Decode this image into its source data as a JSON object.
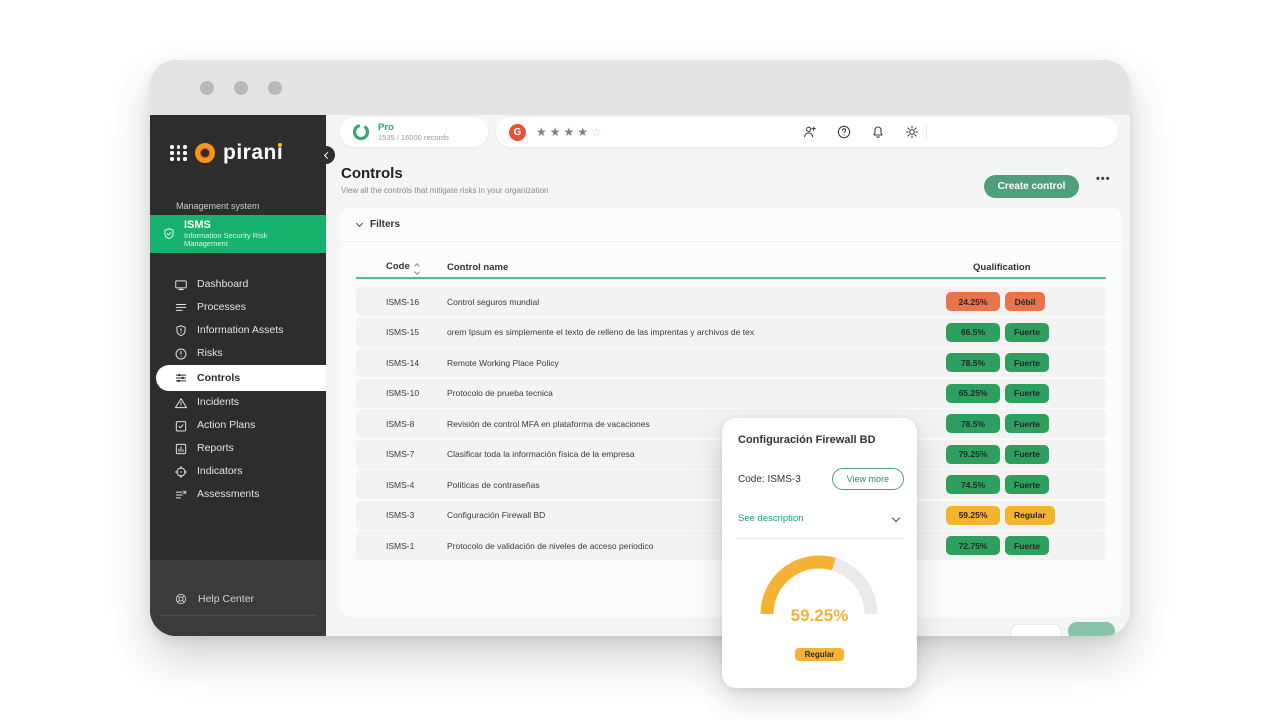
{
  "topbar": {
    "plan": {
      "name": "Pro",
      "records": "1535 / 16000 records"
    },
    "rating": {
      "provider": "G",
      "filled": 4,
      "total": 5
    },
    "icons": [
      "add-user",
      "help",
      "notifications",
      "settings"
    ]
  },
  "sidebar": {
    "brand": "pirani",
    "section_label": "Management system",
    "module": {
      "name": "ISMS",
      "description": "Information Security Risk Management"
    },
    "items": [
      {
        "icon": "dashboard",
        "label": "Dashboard",
        "active": false
      },
      {
        "icon": "processes",
        "label": "Processes",
        "active": false
      },
      {
        "icon": "information-assets",
        "label": "Information Assets",
        "active": false
      },
      {
        "icon": "risks",
        "label": "Risks",
        "active": false
      },
      {
        "icon": "controls",
        "label": "Controls",
        "active": true
      },
      {
        "icon": "incidents",
        "label": "Incidents",
        "active": false
      },
      {
        "icon": "action-plans",
        "label": "Action Plans",
        "active": false
      },
      {
        "icon": "reports",
        "label": "Reports",
        "active": false
      },
      {
        "icon": "indicators",
        "label": "Indicators",
        "active": false
      },
      {
        "icon": "assessments",
        "label": "Assessments",
        "active": false
      }
    ],
    "help_label": "Help Center"
  },
  "page": {
    "title": "Controls",
    "subtitle": "View all the controls that mitigate risks in your organization",
    "create_button": "Create control",
    "more_button": "•••",
    "filters_label": "Filters"
  },
  "table": {
    "columns": {
      "code": "Code",
      "name": "Control name",
      "qualification": "Qualification"
    },
    "rows": [
      {
        "code": "ISMS-16",
        "name": "Control seguros mundial",
        "percent": "24.25%",
        "level": "Débil",
        "color": "#E8744B"
      },
      {
        "code": "ISMS-15",
        "name": "orem Ipsum es simplemente el texto de relleno de las imprentas y archivos de tex",
        "percent": "66.5%",
        "level": "Fuerte",
        "color": "#2DA05D"
      },
      {
        "code": "ISMS-14",
        "name": "Remote Working Place Policy",
        "percent": "78.5%",
        "level": "Fuerte",
        "color": "#2DA05D"
      },
      {
        "code": "ISMS-10",
        "name": "Protocolo de prueba tecnica",
        "percent": "65.25%",
        "level": "Fuerte",
        "color": "#2DA05D"
      },
      {
        "code": "ISMS-8",
        "name": "Revisión de control MFA en plataforma de vacaciones",
        "percent": "78.5%",
        "level": "Fuerte",
        "color": "#2DA05D"
      },
      {
        "code": "ISMS-7",
        "name": "Clasificar toda la información física de la empresa",
        "percent": "79.25%",
        "level": "Fuerte",
        "color": "#2DA05D"
      },
      {
        "code": "ISMS-4",
        "name": "Políticas de contraseñas",
        "percent": "74.5%",
        "level": "Fuerte",
        "color": "#2DA05D"
      },
      {
        "code": "ISMS-3",
        "name": "Configuración Firewall BD",
        "percent": "59.25%",
        "level": "Regular",
        "color": "#F6B32D"
      },
      {
        "code": "ISMS-1",
        "name": "Protocolo de validación de niveles de acceso periodico",
        "percent": "72.75%",
        "level": "Fuerte",
        "color": "#2DA05D"
      }
    ]
  },
  "popup": {
    "title": "Configuración Firewall BD",
    "code": "Code: ISMS-3",
    "view_more": "View more",
    "see_description": "See description",
    "gauge": {
      "percent": 59.25,
      "display": "59.25%",
      "label": "Regular",
      "color": "#F5B335",
      "track": "#EAEAEA"
    }
  },
  "colors": {
    "weak": "#E8744B",
    "strong": "#2DA05D",
    "regular": "#F6B32D",
    "accent_green": "#17B26D",
    "button_green": "#4F9F7C",
    "teal_link": "#1D9E83"
  }
}
